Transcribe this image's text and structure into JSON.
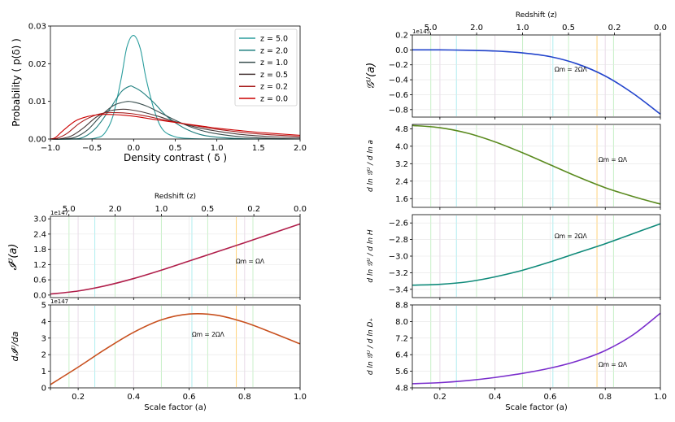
{
  "chart_data": [
    {
      "id": "pdf",
      "type": "line",
      "xlabel": "Density contrast ( δ )",
      "ylabel": "Probability ( p(δ) )",
      "xlim": [
        -1.0,
        2.0
      ],
      "ylim": [
        0,
        0.03
      ],
      "xticks": [
        "−1.0",
        "−0.5",
        "0.0",
        "0.5",
        "1.0",
        "1.5",
        "2.0"
      ],
      "yticks": [
        "0.00",
        "0.01",
        "0.02",
        "0.03"
      ],
      "legend_position": "top-right",
      "series": [
        {
          "name": "z = 5.0",
          "color": "#2a9d9d",
          "x": [
            -1.0,
            -0.6,
            -0.45,
            -0.35,
            -0.25,
            -0.15,
            -0.08,
            0.0,
            0.08,
            0.15,
            0.25,
            0.35,
            0.5,
            0.7,
            1.0,
            1.5,
            2.0
          ],
          "y": [
            0,
            0,
            0.0003,
            0.0015,
            0.006,
            0.016,
            0.0245,
            0.0275,
            0.024,
            0.016,
            0.0075,
            0.0025,
            0.0006,
            0.0001,
            0,
            0,
            0
          ]
        },
        {
          "name": "z = 2.0",
          "color": "#1f7f7f",
          "x": [
            -1.0,
            -0.75,
            -0.6,
            -0.45,
            -0.3,
            -0.15,
            -0.05,
            0.0,
            0.1,
            0.25,
            0.4,
            0.6,
            0.8,
            1.0,
            1.3,
            1.6,
            2.0
          ],
          "y": [
            0,
            0,
            0.0005,
            0.003,
            0.0075,
            0.0125,
            0.014,
            0.0138,
            0.0125,
            0.0095,
            0.006,
            0.003,
            0.0012,
            0.0005,
            0.0001,
            0,
            0
          ]
        },
        {
          "name": "z = 1.0",
          "color": "#3a4f4f",
          "x": [
            -1.0,
            -0.85,
            -0.7,
            -0.55,
            -0.4,
            -0.25,
            -0.1,
            0.0,
            0.15,
            0.3,
            0.5,
            0.7,
            0.9,
            1.2,
            1.5,
            1.8,
            2.0
          ],
          "y": [
            0,
            0,
            0.0005,
            0.0025,
            0.006,
            0.0088,
            0.0099,
            0.0098,
            0.0088,
            0.0072,
            0.005,
            0.0031,
            0.0018,
            0.0008,
            0.0003,
            0.0001,
            0
          ]
        },
        {
          "name": "z = 0.5",
          "color": "#4a3a3a",
          "x": [
            -1.0,
            -0.9,
            -0.75,
            -0.6,
            -0.45,
            -0.3,
            -0.15,
            -0.05,
            0.1,
            0.3,
            0.5,
            0.8,
            1.0,
            1.3,
            1.6,
            2.0
          ],
          "y": [
            0,
            0,
            0.0008,
            0.003,
            0.0058,
            0.0074,
            0.0079,
            0.0078,
            0.0072,
            0.006,
            0.0046,
            0.0029,
            0.0021,
            0.0012,
            0.0007,
            0.0003
          ]
        },
        {
          "name": "z = 0.2",
          "color": "#a81e1e",
          "x": [
            -1.0,
            -0.92,
            -0.8,
            -0.65,
            -0.5,
            -0.35,
            -0.2,
            -0.05,
            0.1,
            0.3,
            0.5,
            0.8,
            1.0,
            1.3,
            1.6,
            2.0
          ],
          "y": [
            0,
            0.0002,
            0.0015,
            0.0042,
            0.006,
            0.0069,
            0.007,
            0.0068,
            0.0063,
            0.0054,
            0.0045,
            0.0033,
            0.0026,
            0.0018,
            0.0012,
            0.0007
          ]
        },
        {
          "name": "z = 0.0",
          "color": "#cc0000",
          "x": [
            -1.0,
            -0.94,
            -0.85,
            -0.7,
            -0.55,
            -0.4,
            -0.25,
            -0.1,
            0.05,
            0.25,
            0.5,
            0.8,
            1.0,
            1.3,
            1.6,
            2.0
          ],
          "y": [
            0,
            0.0004,
            0.0022,
            0.0048,
            0.006,
            0.0065,
            0.0065,
            0.0063,
            0.0059,
            0.0052,
            0.0044,
            0.0035,
            0.0029,
            0.0022,
            0.0016,
            0.001
          ]
        }
      ]
    },
    {
      "id": "I",
      "type": "line",
      "ylabel": "𝓘ᵁ(a)",
      "top_xlabel": "Redshift (z)",
      "top_ticks": [
        "5.0",
        "2.0",
        "1.0",
        "0.5",
        "0.2",
        "0.0"
      ],
      "xlim": [
        0.1,
        1.0
      ],
      "ylim": [
        -0.1,
        3.1
      ],
      "yticks": [
        "0.0",
        "0.6",
        "1.2",
        "1.8",
        "2.4",
        "3.0"
      ],
      "offset": "1e147",
      "annotation": "Ωm = ΩΛ",
      "series": [
        {
          "name": "I(a)",
          "color": "#b01e4a",
          "x": [
            0.1,
            0.2,
            0.3,
            0.4,
            0.5,
            0.6,
            0.7,
            0.8,
            0.9,
            1.0
          ],
          "y": [
            0.04,
            0.16,
            0.37,
            0.65,
            0.98,
            1.34,
            1.7,
            2.06,
            2.43,
            2.8
          ]
        }
      ]
    },
    {
      "id": "dI",
      "type": "line",
      "ylabel": "d𝓘ᵁ/da",
      "xlabel": "Scale factor (a)",
      "xlim": [
        0.1,
        1.0
      ],
      "ylim": [
        0,
        5
      ],
      "xticks": [
        "0.2",
        "0.4",
        "0.6",
        "0.8",
        "1.0"
      ],
      "yticks": [
        "0",
        "1",
        "2",
        "3",
        "4",
        "5"
      ],
      "offset": "1e147",
      "annotation": "Ωm = 2ΩΛ",
      "series": [
        {
          "name": "dI/da",
          "color": "#c8501e",
          "x": [
            0.1,
            0.2,
            0.3,
            0.4,
            0.5,
            0.6,
            0.7,
            0.8,
            0.9,
            1.0
          ],
          "y": [
            0.2,
            1.25,
            2.35,
            3.35,
            4.1,
            4.45,
            4.38,
            3.95,
            3.32,
            2.65
          ]
        }
      ]
    },
    {
      "id": "G",
      "type": "line",
      "ylabel": "𝒢ᵁ(a)",
      "top_xlabel": "Redshift (z)",
      "top_ticks": [
        "5.0",
        "2.0",
        "1.0",
        "0.5",
        "0.2",
        "0.0"
      ],
      "xlim": [
        0.1,
        1.0
      ],
      "ylim": [
        -0.9,
        0.2
      ],
      "yticks": [
        "0.2",
        "0.0",
        "−0.2",
        "−0.4",
        "−0.6",
        "−0.8"
      ],
      "offset": "1e145",
      "annotation": "Ωm = 2ΩΛ",
      "series": [
        {
          "name": "G(a)",
          "color": "#2244cc",
          "x": [
            0.1,
            0.2,
            0.3,
            0.4,
            0.5,
            0.6,
            0.7,
            0.8,
            0.9,
            1.0
          ],
          "y": [
            0.0,
            0.0,
            -0.005,
            -0.015,
            -0.04,
            -0.09,
            -0.19,
            -0.35,
            -0.58,
            -0.86
          ]
        }
      ]
    },
    {
      "id": "dlnG_lna",
      "type": "line",
      "ylabel": "d ln 𝒢ᵁ / d ln a",
      "xlim": [
        0.1,
        1.0
      ],
      "ylim": [
        1.2,
        5.0
      ],
      "yticks": [
        "4.8",
        "4.0",
        "3.2",
        "2.4",
        "1.6"
      ],
      "annotation": "Ωm = ΩΛ",
      "series": [
        {
          "name": "dlnG/dlna",
          "color": "#5a8a1e",
          "x": [
            0.1,
            0.2,
            0.3,
            0.4,
            0.5,
            0.6,
            0.7,
            0.8,
            0.9,
            1.0
          ],
          "y": [
            4.95,
            4.85,
            4.6,
            4.2,
            3.7,
            3.15,
            2.6,
            2.1,
            1.7,
            1.35
          ]
        }
      ]
    },
    {
      "id": "dlnG_lnH",
      "type": "line",
      "ylabel": "d ln 𝒢ᵁ / d ln H",
      "xlim": [
        0.1,
        1.0
      ],
      "ylim": [
        -3.5,
        -2.5
      ],
      "yticks": [
        "−2.6",
        "−2.8",
        "−3.0",
        "−3.2",
        "−3.4"
      ],
      "annotation": "Ωm = 2ΩΛ",
      "series": [
        {
          "name": "dlnG/dlnH",
          "color": "#0f8a7a",
          "x": [
            0.1,
            0.2,
            0.3,
            0.4,
            0.5,
            0.6,
            0.7,
            0.8,
            0.9,
            1.0
          ],
          "y": [
            -3.35,
            -3.34,
            -3.31,
            -3.25,
            -3.17,
            -3.07,
            -2.96,
            -2.85,
            -2.73,
            -2.61
          ]
        }
      ]
    },
    {
      "id": "dlnG_lnD",
      "type": "line",
      "ylabel": "d ln 𝒢ᵁ / d ln D₊",
      "xlabel": "Scale factor (a)",
      "xlim": [
        0.1,
        1.0
      ],
      "ylim": [
        4.8,
        8.8
      ],
      "xticks": [
        "0.2",
        "0.4",
        "0.6",
        "0.8",
        "1.0"
      ],
      "yticks": [
        "8.8",
        "8.0",
        "7.2",
        "6.4",
        "5.6",
        "4.8"
      ],
      "annotation": "Ωm = ΩΛ",
      "series": [
        {
          "name": "dlnG/dlnD",
          "color": "#7a2ecc",
          "x": [
            0.1,
            0.2,
            0.3,
            0.4,
            0.5,
            0.6,
            0.7,
            0.8,
            0.9,
            1.0
          ],
          "y": [
            5.0,
            5.05,
            5.15,
            5.3,
            5.5,
            5.75,
            6.1,
            6.6,
            7.35,
            8.4
          ]
        }
      ]
    }
  ]
}
